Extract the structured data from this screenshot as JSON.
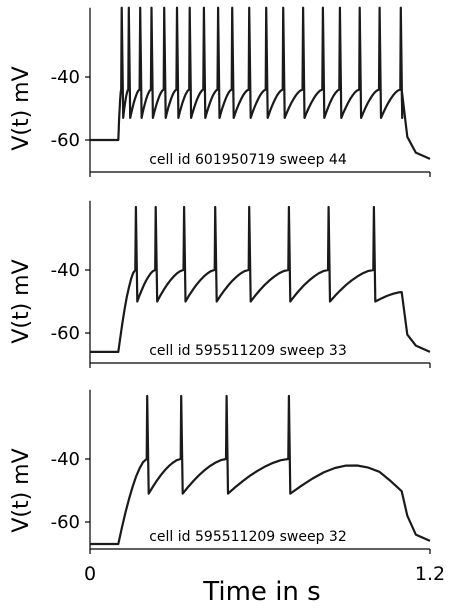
{
  "chart_data": [
    {
      "type": "line",
      "ylabel": "V(t) mV",
      "annotation": "cell id 601950719 sweep 44",
      "yticks": [
        -40,
        -60
      ],
      "ylim": [
        -70,
        -20
      ],
      "xlim": [
        0,
        1.2
      ],
      "baseline_mV": -60,
      "stim_start_s": 0.1,
      "stim_end_s": 1.1,
      "spike_peak_mV": -18,
      "trough_mV": -53,
      "threshold_mV": -44,
      "end_mV": -66,
      "spike_times_s": [
        0.11,
        0.135,
        0.175,
        0.215,
        0.26,
        0.305,
        0.35,
        0.4,
        0.45,
        0.5,
        0.56,
        0.62,
        0.68,
        0.75,
        0.82,
        0.88,
        0.95,
        1.02,
        1.095
      ]
    },
    {
      "type": "line",
      "ylabel": "V(t) mV",
      "annotation": "cell id 595511209 sweep 33",
      "yticks": [
        -40,
        -60
      ],
      "ylim": [
        -70,
        -20
      ],
      "xlim": [
        0,
        1.2
      ],
      "baseline_mV": -66,
      "stim_start_s": 0.1,
      "stim_end_s": 1.1,
      "spike_peak_mV": -20,
      "trough_mV": -50,
      "threshold_mV": -40,
      "end_mV": -66,
      "spike_times_s": [
        0.16,
        0.23,
        0.33,
        0.44,
        0.56,
        0.7,
        0.84,
        1.0
      ]
    },
    {
      "type": "line",
      "ylabel": "V(t) mV",
      "annotation": "cell id 595511209 sweep 32",
      "yticks": [
        -40,
        -60
      ],
      "ylim": [
        -70,
        -20
      ],
      "xlim": [
        0,
        1.2
      ],
      "baseline_mV": -67,
      "stim_start_s": 0.1,
      "stim_end_s": 1.1,
      "spike_peak_mV": -20,
      "trough_mV": -51,
      "threshold_mV": -40,
      "end_mV": -66,
      "spike_times_s": [
        0.2,
        0.32,
        0.48,
        0.7
      ]
    }
  ],
  "xaxis": {
    "xticks": [
      "0",
      "1.2"
    ],
    "xlabel": "Time in s"
  }
}
